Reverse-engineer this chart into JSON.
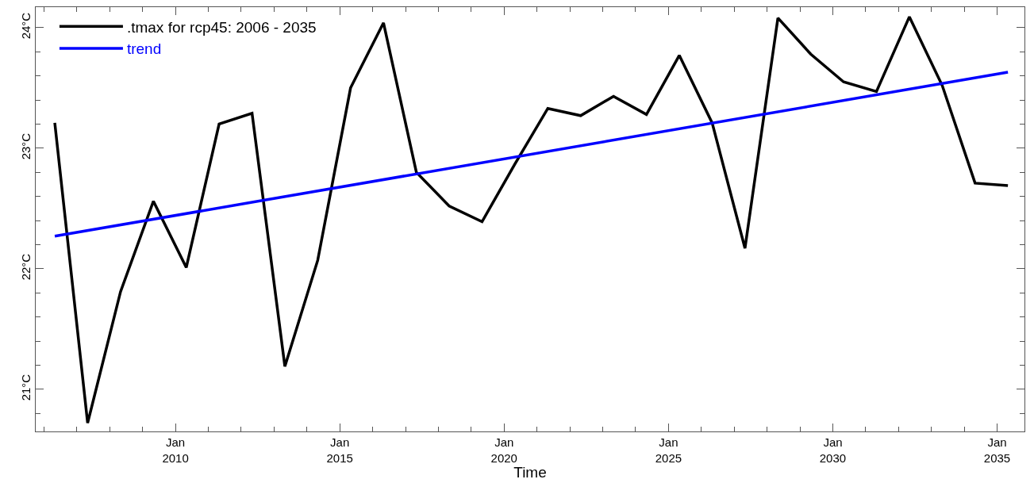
{
  "chart_data": {
    "type": "line",
    "xlabel": "Time",
    "x": [
      "2006-05",
      "2007-05",
      "2008-05",
      "2009-05",
      "2010-05",
      "2011-05",
      "2012-05",
      "2013-05",
      "2014-05",
      "2015-05",
      "2016-05",
      "2017-05",
      "2018-05",
      "2019-05",
      "2020-05",
      "2021-05",
      "2022-05",
      "2023-05",
      "2024-05",
      "2025-05",
      "2026-05",
      "2027-05",
      "2028-05",
      "2029-05",
      "2030-05",
      "2031-05",
      "2032-05",
      "2033-05",
      "2034-05",
      "2035-05"
    ],
    "series": [
      {
        "name": ".tmax for rcp45: 2006 - 2035",
        "color": "#000000",
        "values": [
          23.21,
          20.72,
          21.81,
          22.56,
          22.01,
          23.2,
          23.29,
          21.19,
          22.07,
          23.5,
          24.04,
          22.8,
          22.52,
          22.39,
          22.87,
          23.33,
          23.27,
          23.43,
          23.28,
          23.77,
          23.21,
          22.17,
          24.08,
          23.78,
          23.55,
          23.47,
          24.09,
          23.52,
          22.71,
          22.69
        ]
      },
      {
        "name": "trend",
        "color": "#0000ff",
        "x": [
          "2006-05",
          "2035-05"
        ],
        "values": [
          22.27,
          23.63
        ]
      }
    ],
    "xlim": [
      "2005-10",
      "2035-11"
    ],
    "xticks": [
      {
        "value": "2010-01",
        "label": "Jan\n2010"
      },
      {
        "value": "2015-01",
        "label": "Jan\n2015"
      },
      {
        "value": "2020-01",
        "label": "Jan\n2020"
      },
      {
        "value": "2025-01",
        "label": "Jan\n2025"
      },
      {
        "value": "2030-01",
        "label": "Jan\n2030"
      },
      {
        "value": "2035-01",
        "label": "Jan\n2035"
      }
    ],
    "ylim": [
      20.65,
      24.17
    ],
    "yticks": [
      {
        "value": 21,
        "label": "21°C"
      },
      {
        "value": 22,
        "label": "22°C"
      },
      {
        "value": 23,
        "label": "23°C"
      },
      {
        "value": 24,
        "label": "24°C"
      }
    ],
    "legend": "top left",
    "line_style": "solid",
    "marker": "none"
  }
}
